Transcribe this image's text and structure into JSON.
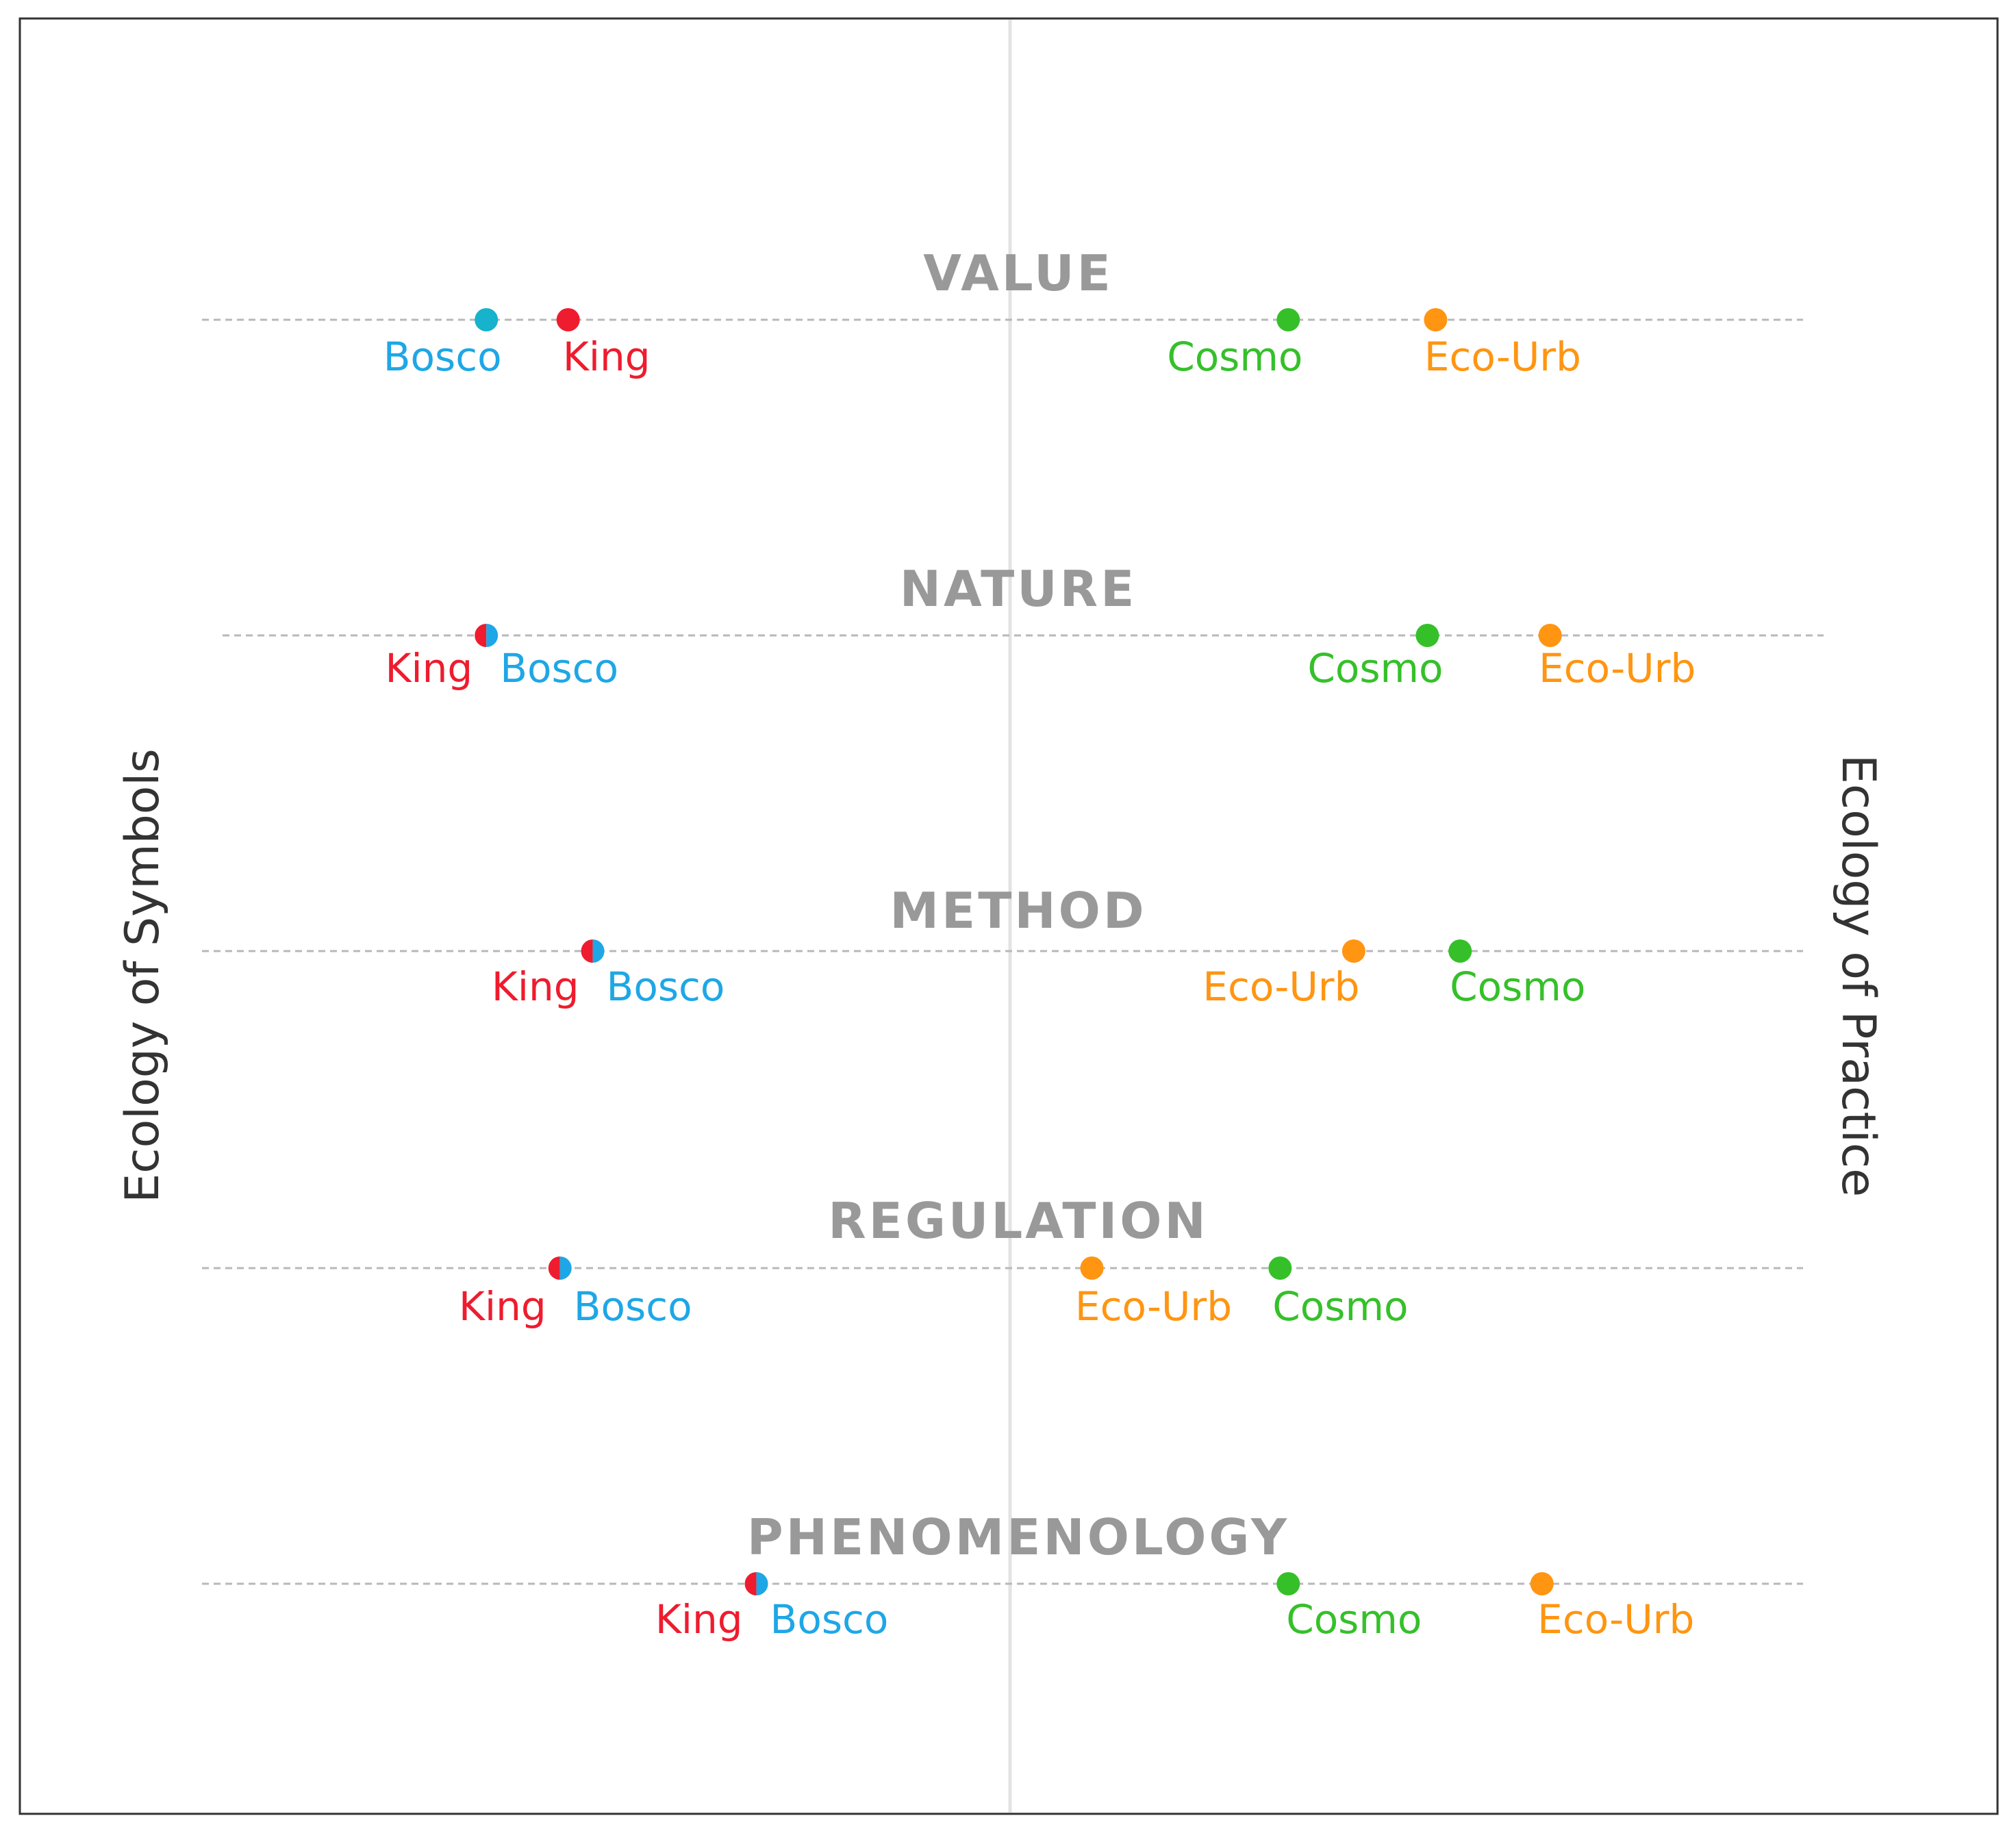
{
  "axes": {
    "left_label": "Ecology of Symbols",
    "right_label": "Ecology of Practice"
  },
  "colors": {
    "King": "#ee1c2e",
    "Bosco": "#1ea7e6",
    "Cosmo": "#35c02a",
    "Eco-Urb": "#ff9511",
    "bosco_dot_value_row": "#17b2cc",
    "guide": "#b8b8b8",
    "center_line": "#e3e3e3",
    "row_title": "#999999"
  },
  "rows": [
    {
      "title": "VALUE",
      "markers": [
        {
          "label": "Bosco",
          "group": "Bosco",
          "position": -0.64,
          "dot": "solid"
        },
        {
          "label": "King",
          "group": "King",
          "position": -0.54,
          "dot": "solid"
        },
        {
          "label": "Cosmo",
          "group": "Cosmo",
          "position": 0.34,
          "dot": "solid"
        },
        {
          "label": "Eco-Urb",
          "group": "Eco-Urb",
          "position": 0.52,
          "dot": "solid"
        }
      ]
    },
    {
      "title": "NATURE",
      "markers": [
        {
          "label": "King",
          "group": "King",
          "position": -0.64,
          "dot": "split"
        },
        {
          "label": "Bosco",
          "group": "Bosco",
          "position": -0.64,
          "dot": "split"
        },
        {
          "label": "Cosmo",
          "group": "Cosmo",
          "position": 0.51,
          "dot": "solid"
        },
        {
          "label": "Eco-Urb",
          "group": "Eco-Urb",
          "position": 0.66,
          "dot": "solid"
        }
      ]
    },
    {
      "title": "METHOD",
      "markers": [
        {
          "label": "King",
          "group": "King",
          "position": -0.51,
          "dot": "split"
        },
        {
          "label": "Bosco",
          "group": "Bosco",
          "position": -0.51,
          "dot": "split"
        },
        {
          "label": "Eco-Urb",
          "group": "Eco-Urb",
          "position": 0.42,
          "dot": "solid"
        },
        {
          "label": "Cosmo",
          "group": "Cosmo",
          "position": 0.55,
          "dot": "solid"
        }
      ]
    },
    {
      "title": "REGULATION",
      "markers": [
        {
          "label": "King",
          "group": "King",
          "position": -0.55,
          "dot": "split"
        },
        {
          "label": "Bosco",
          "group": "Bosco",
          "position": -0.55,
          "dot": "split"
        },
        {
          "label": "Eco-Urb",
          "group": "Eco-Urb",
          "position": 0.1,
          "dot": "solid"
        },
        {
          "label": "Cosmo",
          "group": "Cosmo",
          "position": 0.33,
          "dot": "solid"
        }
      ]
    },
    {
      "title": "PHENOMENOLOGY",
      "markers": [
        {
          "label": "King",
          "group": "King",
          "position": -0.31,
          "dot": "split"
        },
        {
          "label": "Bosco",
          "group": "Bosco",
          "position": -0.31,
          "dot": "split"
        },
        {
          "label": "Cosmo",
          "group": "Cosmo",
          "position": 0.34,
          "dot": "solid"
        },
        {
          "label": "Eco-Urb",
          "group": "Eco-Urb",
          "position": 0.65,
          "dot": "solid"
        }
      ]
    }
  ]
}
